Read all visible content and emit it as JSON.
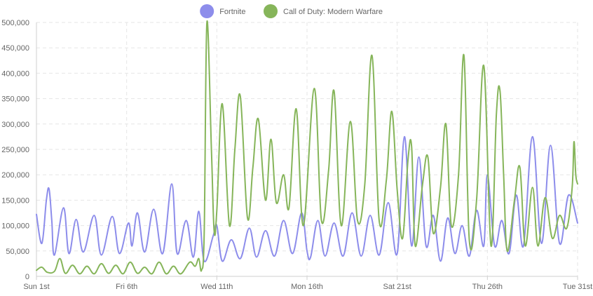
{
  "chart_data": {
    "type": "line",
    "title": "",
    "xlabel": "",
    "ylabel": "",
    "legend_position": "top-center",
    "grid": true,
    "x_unit": "days (day 1 = Sun 1st)",
    "xlim": [
      1,
      31
    ],
    "ylim": [
      0,
      500000
    ],
    "x_ticks": [
      {
        "x": 1,
        "label": "Sun 1st"
      },
      {
        "x": 6,
        "label": "Fri 6th"
      },
      {
        "x": 11,
        "label": "Wed 11th"
      },
      {
        "x": 16,
        "label": "Mon 16th"
      },
      {
        "x": 21,
        "label": "Sat 21st"
      },
      {
        "x": 26,
        "label": "Thu 26th"
      },
      {
        "x": 31,
        "label": "Tue 31st"
      }
    ],
    "y_ticks": [
      {
        "y": 0,
        "label": "0"
      },
      {
        "y": 50000,
        "label": "50,000"
      },
      {
        "y": 100000,
        "label": "100,000"
      },
      {
        "y": 150000,
        "label": "150,000"
      },
      {
        "y": 200000,
        "label": "200,000"
      },
      {
        "y": 250000,
        "label": "250,000"
      },
      {
        "y": 300000,
        "label": "300,000"
      },
      {
        "y": 350000,
        "label": "350,000"
      },
      {
        "y": 400000,
        "label": "400,000"
      },
      {
        "y": 450000,
        "label": "450,000"
      },
      {
        "y": 500000,
        "label": "500,000"
      }
    ],
    "series": [
      {
        "name": "Fortnite",
        "color": "#8d8deb",
        "points": [
          [
            1.0,
            122000
          ],
          [
            1.3,
            65000
          ],
          [
            1.55,
            150000
          ],
          [
            1.7,
            172000
          ],
          [
            1.85,
            110000
          ],
          [
            2.0,
            42000
          ],
          [
            2.5,
            135000
          ],
          [
            2.8,
            45000
          ],
          [
            3.2,
            112000
          ],
          [
            3.6,
            48000
          ],
          [
            4.2,
            120000
          ],
          [
            4.6,
            42000
          ],
          [
            5.2,
            118000
          ],
          [
            5.6,
            45000
          ],
          [
            6.1,
            105000
          ],
          [
            6.3,
            60000
          ],
          [
            6.6,
            125000
          ],
          [
            7.0,
            48000
          ],
          [
            7.5,
            132000
          ],
          [
            8.0,
            45000
          ],
          [
            8.5,
            182000
          ],
          [
            8.8,
            45000
          ],
          [
            9.3,
            110000
          ],
          [
            9.7,
            38000
          ],
          [
            10.0,
            128000
          ],
          [
            10.3,
            30000
          ],
          [
            10.8,
            80000
          ],
          [
            11.0,
            100000
          ],
          [
            11.3,
            30000
          ],
          [
            11.8,
            72000
          ],
          [
            12.3,
            35000
          ],
          [
            12.8,
            95000
          ],
          [
            13.2,
            38000
          ],
          [
            13.7,
            90000
          ],
          [
            14.2,
            40000
          ],
          [
            14.7,
            110000
          ],
          [
            15.2,
            45000
          ],
          [
            15.7,
            125000
          ],
          [
            16.0,
            50000
          ],
          [
            16.2,
            38000
          ],
          [
            16.6,
            110000
          ],
          [
            17.0,
            40000
          ],
          [
            17.5,
            105000
          ],
          [
            18.0,
            40000
          ],
          [
            18.5,
            125000
          ],
          [
            19.0,
            40000
          ],
          [
            19.5,
            120000
          ],
          [
            20.0,
            42000
          ],
          [
            20.5,
            145000
          ],
          [
            21.0,
            45000
          ],
          [
            21.4,
            275000
          ],
          [
            21.8,
            60000
          ],
          [
            22.2,
            235000
          ],
          [
            22.6,
            60000
          ],
          [
            23.0,
            120000
          ],
          [
            23.4,
            30000
          ],
          [
            23.8,
            115000
          ],
          [
            24.2,
            45000
          ],
          [
            24.6,
            100000
          ],
          [
            25.0,
            40000
          ],
          [
            25.4,
            130000
          ],
          [
            25.8,
            60000
          ],
          [
            26.0,
            200000
          ],
          [
            26.4,
            60000
          ],
          [
            26.8,
            110000
          ],
          [
            27.2,
            45000
          ],
          [
            27.6,
            160000
          ],
          [
            28.0,
            60000
          ],
          [
            28.5,
            275000
          ],
          [
            29.0,
            65000
          ],
          [
            29.5,
            258000
          ],
          [
            30.0,
            65000
          ],
          [
            30.5,
            160000
          ],
          [
            31.0,
            105000
          ]
        ]
      },
      {
        "name": "Call of Duty: Modern Warfare",
        "color": "#86b55a",
        "points": [
          [
            1.0,
            12000
          ],
          [
            1.3,
            18000
          ],
          [
            1.6,
            8000
          ],
          [
            2.0,
            10000
          ],
          [
            2.3,
            35000
          ],
          [
            2.6,
            6000
          ],
          [
            3.0,
            22000
          ],
          [
            3.4,
            5000
          ],
          [
            3.8,
            20000
          ],
          [
            4.2,
            5000
          ],
          [
            4.6,
            25000
          ],
          [
            5.0,
            6000
          ],
          [
            5.4,
            22000
          ],
          [
            5.8,
            5000
          ],
          [
            6.2,
            28000
          ],
          [
            6.6,
            6000
          ],
          [
            7.0,
            18000
          ],
          [
            7.4,
            5000
          ],
          [
            7.8,
            28000
          ],
          [
            8.2,
            5000
          ],
          [
            8.6,
            20000
          ],
          [
            9.0,
            5000
          ],
          [
            9.5,
            28000
          ],
          [
            9.8,
            20000
          ],
          [
            10.0,
            35000
          ],
          [
            10.15,
            12000
          ],
          [
            10.3,
            85000
          ],
          [
            10.45,
            500000
          ],
          [
            10.7,
            250000
          ],
          [
            10.85,
            90000
          ],
          [
            11.0,
            130000
          ],
          [
            11.3,
            340000
          ],
          [
            11.7,
            100000
          ],
          [
            12.0,
            250000
          ],
          [
            12.3,
            355000
          ],
          [
            12.7,
            115000
          ],
          [
            13.0,
            215000
          ],
          [
            13.3,
            310000
          ],
          [
            13.7,
            150000
          ],
          [
            14.0,
            270000
          ],
          [
            14.3,
            145000
          ],
          [
            14.7,
            200000
          ],
          [
            15.0,
            135000
          ],
          [
            15.4,
            330000
          ],
          [
            15.8,
            100000
          ],
          [
            16.4,
            370000
          ],
          [
            16.8,
            110000
          ],
          [
            17.2,
            210000
          ],
          [
            17.5,
            365000
          ],
          [
            17.9,
            100000
          ],
          [
            18.4,
            305000
          ],
          [
            18.8,
            110000
          ],
          [
            19.2,
            180000
          ],
          [
            19.6,
            435000
          ],
          [
            20.0,
            110000
          ],
          [
            20.4,
            190000
          ],
          [
            20.7,
            325000
          ],
          [
            21.0,
            170000
          ],
          [
            21.3,
            75000
          ],
          [
            21.6,
            230000
          ],
          [
            21.8,
            255000
          ],
          [
            22.0,
            60000
          ],
          [
            22.4,
            180000
          ],
          [
            22.7,
            235000
          ],
          [
            23.0,
            85000
          ],
          [
            23.4,
            175000
          ],
          [
            23.7,
            300000
          ],
          [
            24.0,
            100000
          ],
          [
            24.4,
            200000
          ],
          [
            24.7,
            435000
          ],
          [
            25.0,
            70000
          ],
          [
            25.4,
            150000
          ],
          [
            25.8,
            415000
          ],
          [
            26.2,
            60000
          ],
          [
            26.5,
            320000
          ],
          [
            26.7,
            365000
          ],
          [
            26.9,
            200000
          ],
          [
            27.1,
            50000
          ],
          [
            27.5,
            150000
          ],
          [
            27.8,
            215000
          ],
          [
            28.1,
            60000
          ],
          [
            28.5,
            175000
          ],
          [
            28.8,
            60000
          ],
          [
            29.2,
            155000
          ],
          [
            29.6,
            75000
          ],
          [
            30.0,
            120000
          ],
          [
            30.4,
            95000
          ],
          [
            30.7,
            175000
          ],
          [
            30.8,
            265000
          ],
          [
            30.9,
            200000
          ],
          [
            31.0,
            182000
          ]
        ]
      }
    ]
  }
}
